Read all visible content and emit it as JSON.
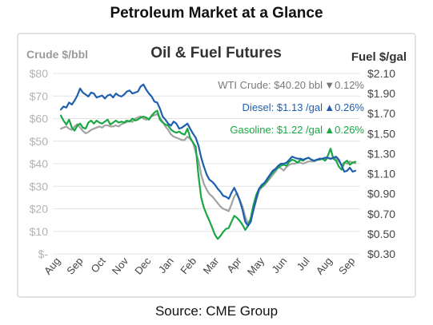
{
  "page": {
    "title": "Petroleum Market at a Glance",
    "source": "Source: CME Group"
  },
  "chart_data": {
    "type": "line",
    "title": "Oil & Fuel Futures",
    "ylabel_left": "Crude $/bbl",
    "ylabel_right": "Fuel $/gal",
    "left_axis": {
      "range": [
        0,
        80
      ],
      "ticks": [
        "$-",
        "$10",
        "$20",
        "$30",
        "$40",
        "$50",
        "$60",
        "$70",
        "$80"
      ]
    },
    "right_axis": {
      "range": [
        0.3,
        2.1
      ],
      "ticks": [
        "$0.30",
        "$0.50",
        "$0.70",
        "$0.90",
        "$1.10",
        "$1.30",
        "$1.50",
        "$1.70",
        "$1.90",
        "$2.10"
      ]
    },
    "x_tick_labels": [
      "Aug",
      "Sep",
      "Oct",
      "Nov",
      "Dec",
      "Jan",
      "Feb",
      "Mar",
      "Apr",
      "May",
      "Jun",
      "Jul",
      "Aug",
      "Sep"
    ],
    "grid": true,
    "legend_placement": "top-right",
    "series": [
      {
        "name": "WTI Crude",
        "label": "WTI Crude: $40.20 bbl",
        "change": "▼0.12%",
        "axis": "left",
        "color": "#a3a3a3",
        "change_color": "#777777",
        "values": [
          55.5,
          56.0,
          56.5,
          55.5,
          55.0,
          56.5,
          57.5,
          56.0,
          54.5,
          53.5,
          54.0,
          55.0,
          55.5,
          56.0,
          56.5,
          56.0,
          57.0,
          57.0,
          56.5,
          56.5,
          57.0,
          56.5,
          57.5,
          58.0,
          58.5,
          59.0,
          58.5,
          60.0,
          60.5,
          61.0,
          60.0,
          59.5,
          60.0,
          61.0,
          61.5,
          62.0,
          60.5,
          58.5,
          56.5,
          55.0,
          53.0,
          52.0,
          51.5,
          51.0,
          50.5,
          50.5,
          52.0,
          51.0,
          49.5,
          45.0,
          41.5,
          35.0,
          31.0,
          28.5,
          26.5,
          25.5,
          24.0,
          22.5,
          21.0,
          20.0,
          19.5,
          19.0,
          22.0,
          25.5,
          27.0,
          24.0,
          21.0,
          16.5,
          13.5,
          15.5,
          19.5,
          24.0,
          28.0,
          29.5,
          30.5,
          32.0,
          33.5,
          35.0,
          36.5,
          38.5,
          38.0,
          37.0,
          38.5,
          39.5,
          40.0,
          40.0,
          40.5,
          40.5,
          40.0,
          40.5,
          41.0,
          41.0,
          41.0,
          41.5,
          42.0,
          42.0,
          41.5,
          42.5,
          42.0,
          42.5,
          42.5,
          41.0,
          39.5,
          40.5,
          40.0,
          41.0,
          40.5,
          40.2
        ]
      },
      {
        "name": "Diesel",
        "label": "Diesel:  $1.13 /gal",
        "change": "▲0.26%",
        "axis": "right",
        "color": "#1f5fb0",
        "change_color": "#1f5fb0",
        "values": [
          1.74,
          1.77,
          1.76,
          1.81,
          1.79,
          1.83,
          1.88,
          1.95,
          1.91,
          1.89,
          1.87,
          1.91,
          1.9,
          1.86,
          1.87,
          1.88,
          1.85,
          1.88,
          1.89,
          1.86,
          1.9,
          1.88,
          1.87,
          1.89,
          1.92,
          1.93,
          1.9,
          1.91,
          1.92,
          1.97,
          1.99,
          1.94,
          1.9,
          1.87,
          1.82,
          1.81,
          1.75,
          1.67,
          1.64,
          1.6,
          1.58,
          1.62,
          1.6,
          1.55,
          1.56,
          1.58,
          1.6,
          1.55,
          1.5,
          1.46,
          1.38,
          1.26,
          1.17,
          1.09,
          1.04,
          1.02,
          0.99,
          0.95,
          0.92,
          0.88,
          0.87,
          0.85,
          0.91,
          0.96,
          0.9,
          0.83,
          0.74,
          0.62,
          0.58,
          0.62,
          0.74,
          0.85,
          0.95,
          0.99,
          1.01,
          1.05,
          1.09,
          1.13,
          1.15,
          1.18,
          1.2,
          1.2,
          1.21,
          1.24,
          1.27,
          1.26,
          1.25,
          1.25,
          1.24,
          1.25,
          1.26,
          1.24,
          1.23,
          1.24,
          1.25,
          1.25,
          1.26,
          1.26,
          1.25,
          1.26,
          1.27,
          1.24,
          1.18,
          1.12,
          1.13,
          1.16,
          1.12,
          1.13
        ]
      },
      {
        "name": "Gasoline",
        "label": "Gasoline:  $1.22 /gal",
        "change": "▲0.26%",
        "axis": "right",
        "color": "#19a844",
        "change_color": "#19a844",
        "values": [
          1.68,
          1.63,
          1.59,
          1.64,
          1.56,
          1.53,
          1.58,
          1.6,
          1.56,
          1.55,
          1.61,
          1.63,
          1.6,
          1.63,
          1.61,
          1.6,
          1.62,
          1.64,
          1.59,
          1.61,
          1.63,
          1.61,
          1.62,
          1.61,
          1.63,
          1.62,
          1.65,
          1.63,
          1.64,
          1.66,
          1.67,
          1.66,
          1.64,
          1.68,
          1.71,
          1.73,
          1.64,
          1.61,
          1.59,
          1.58,
          1.54,
          1.52,
          1.51,
          1.52,
          1.5,
          1.49,
          1.55,
          1.46,
          1.41,
          1.37,
          1.08,
          0.86,
          0.76,
          0.69,
          0.63,
          0.56,
          0.49,
          0.45,
          0.48,
          0.52,
          0.55,
          0.56,
          0.62,
          0.68,
          0.66,
          0.63,
          0.59,
          0.54,
          0.58,
          0.66,
          0.79,
          0.89,
          0.95,
          0.97,
          1.0,
          1.03,
          1.08,
          1.11,
          1.14,
          1.16,
          1.18,
          1.19,
          1.18,
          1.22,
          1.24,
          1.23,
          1.21,
          1.24,
          1.23,
          1.25,
          1.26,
          1.24,
          1.23,
          1.24,
          1.24,
          1.25,
          1.23,
          1.28,
          1.35,
          1.25,
          1.23,
          1.17,
          1.14,
          1.21,
          1.23,
          1.19,
          1.21,
          1.22
        ]
      }
    ]
  }
}
